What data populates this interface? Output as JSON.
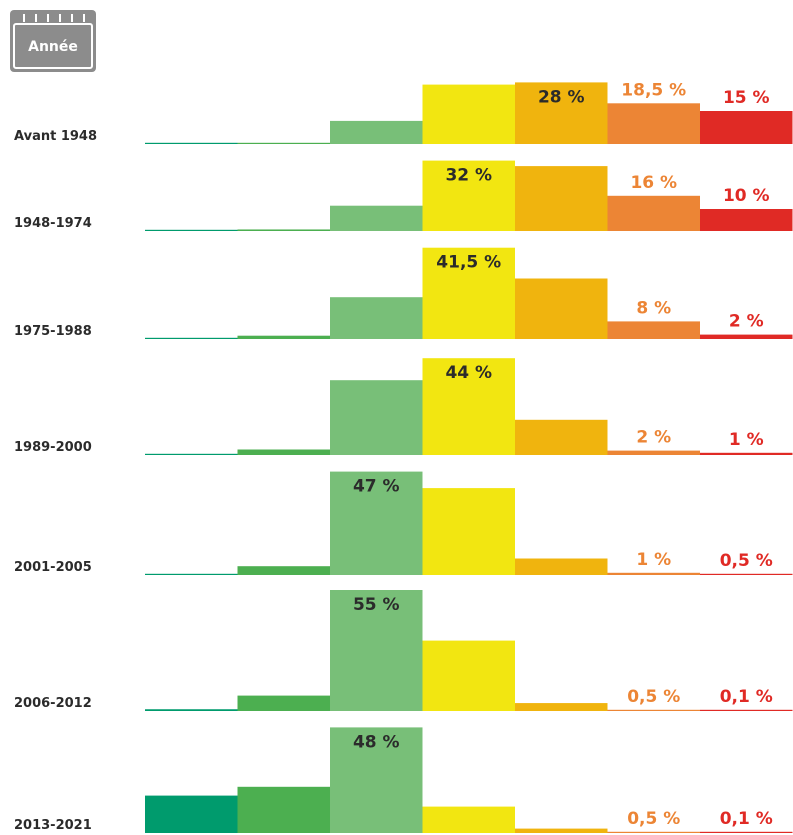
{
  "icon_label": "Année",
  "chart_data": {
    "type": "bar",
    "colors": [
      "#009b6d",
      "#4caf50",
      "#78bf78",
      "#f2e611",
      "#f0b40e",
      "#ec8535",
      "#e02a25"
    ],
    "series": [
      {
        "name": "Avant 1948",
        "values": [
          0.2,
          0.3,
          10.5,
          27,
          28,
          18.5,
          15
        ],
        "value_labels": [
          null,
          null,
          null,
          null,
          "28 %",
          "18,5 %",
          "15 %"
        ]
      },
      {
        "name": "1948-1974",
        "values": [
          0.3,
          0.7,
          11.5,
          32,
          29.5,
          16,
          10
        ],
        "value_labels": [
          null,
          null,
          null,
          "32 %",
          null,
          "16 %",
          "10 %"
        ]
      },
      {
        "name": "1975-1988",
        "values": [
          0.5,
          1.5,
          19,
          41.5,
          27.5,
          8,
          2
        ],
        "value_labels": [
          null,
          null,
          null,
          "41,5 %",
          null,
          "8 %",
          "2 %"
        ]
      },
      {
        "name": "1989-2000",
        "values": [
          0.3,
          2.5,
          34,
          44,
          16,
          2,
          1
        ],
        "value_labels": [
          null,
          null,
          null,
          "44 %",
          null,
          "2 %",
          "1 %"
        ]
      },
      {
        "name": "2001-2005",
        "values": [
          0.3,
          4,
          47,
          39.5,
          7.5,
          1,
          0.5
        ],
        "value_labels": [
          null,
          null,
          "47 %",
          null,
          null,
          "1 %",
          "0,5 %"
        ]
      },
      {
        "name": "2006-2012",
        "values": [
          0.8,
          7,
          55,
          32,
          3.6,
          0.5,
          0.1
        ],
        "value_labels": [
          null,
          null,
          "55 %",
          null,
          null,
          "0,5 %",
          "0,1 %"
        ]
      },
      {
        "name": "2013-2021",
        "values": [
          17,
          21,
          48,
          12,
          2,
          0.5,
          0.1
        ],
        "value_labels": [
          null,
          null,
          "48 %",
          null,
          null,
          "0,5 %",
          "0,1 %"
        ]
      }
    ]
  }
}
